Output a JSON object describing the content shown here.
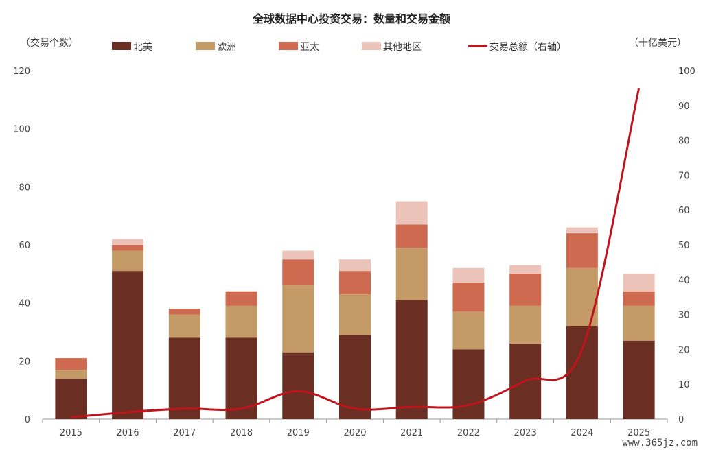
{
  "chart_data": {
    "type": "bar",
    "title": "全球数据中心投资交易：数量和交易金额",
    "ylabel_left": "（交易个数）",
    "ylabel_right": "（十亿美元）",
    "categories": [
      "2015",
      "2016",
      "2017",
      "2018",
      "2019",
      "2020",
      "2021",
      "2022",
      "2023",
      "2024",
      "2025"
    ],
    "series": [
      {
        "name": "北美",
        "kind": "bar",
        "color": "#6b2e22",
        "values": [
          14,
          51,
          28,
          28,
          23,
          29,
          41,
          24,
          26,
          32,
          27
        ]
      },
      {
        "name": "欧洲",
        "kind": "bar",
        "color": "#c49a66",
        "values": [
          3,
          7,
          8,
          11,
          23,
          14,
          18,
          13,
          13,
          20,
          12
        ]
      },
      {
        "name": "亚太",
        "kind": "bar",
        "color": "#cd6a50",
        "values": [
          4,
          2,
          2,
          5,
          9,
          8,
          8,
          10,
          11,
          12,
          5
        ]
      },
      {
        "name": "其他地区",
        "kind": "bar",
        "color": "#ecc3b8",
        "values": [
          0,
          2,
          0,
          0,
          3,
          4,
          8,
          5,
          3,
          2,
          6
        ]
      },
      {
        "name": "交易总额（右轴）",
        "kind": "line",
        "axis": "right",
        "color": "#c0141c",
        "values": [
          0.5,
          2,
          3,
          3,
          8,
          3,
          3.5,
          4,
          11,
          20,
          95
        ]
      }
    ],
    "yleft_lim": [
      0,
      120
    ],
    "yleft_ticks": [
      0,
      20,
      40,
      60,
      80,
      100,
      120
    ],
    "yright_lim": [
      0,
      100
    ],
    "yright_ticks": [
      0,
      10,
      20,
      30,
      40,
      50,
      60,
      70,
      80,
      90,
      100
    ],
    "grid": false,
    "legend_position": "top"
  },
  "watermark": "www.365jz.com"
}
